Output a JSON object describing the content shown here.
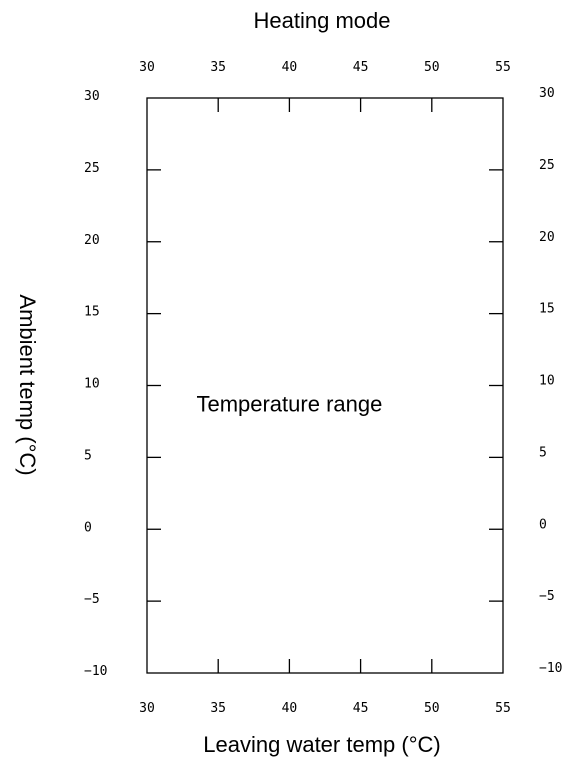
{
  "chart_data": {
    "type": "line",
    "title": "Heating mode",
    "xlabel": "Leaving water temp (°C)",
    "ylabel": "Ambient temp (°C)",
    "xlim": [
      30,
      55
    ],
    "ylim": [
      -10,
      30
    ],
    "xticks": [
      30,
      35,
      40,
      45,
      50,
      55
    ],
    "yticks": [
      -10,
      -5,
      0,
      5,
      10,
      15,
      20,
      25,
      30
    ],
    "xtick_labels": [
      "30",
      "35",
      "40",
      "45",
      "50",
      "55"
    ],
    "ytick_labels": [
      "−10",
      "−5",
      "0",
      "5",
      "10",
      "15",
      "20",
      "25",
      "30"
    ],
    "series": [],
    "annotations": [
      {
        "text": "Temperature range",
        "x": 40,
        "y": 8.2
      }
    ],
    "grid": false,
    "legend": "none",
    "mirrored_axes": true
  }
}
